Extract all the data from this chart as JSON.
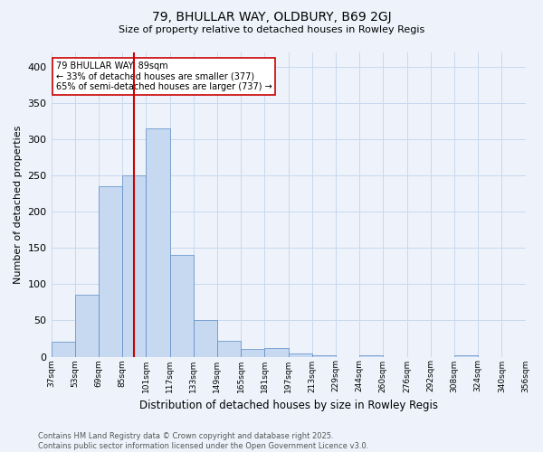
{
  "title_line1": "79, BHULLAR WAY, OLDBURY, B69 2GJ",
  "title_line2": "Size of property relative to detached houses in Rowley Regis",
  "xlabel": "Distribution of detached houses by size in Rowley Regis",
  "ylabel": "Number of detached properties",
  "bar_values": [
    20,
    85,
    235,
    250,
    315,
    140,
    50,
    22,
    10,
    12,
    5,
    2,
    0,
    2,
    0,
    0,
    0,
    2,
    0,
    0
  ],
  "bin_edges": [
    37,
    53,
    69,
    85,
    101,
    117,
    133,
    149,
    165,
    181,
    197,
    213,
    229,
    244,
    260,
    276,
    292,
    308,
    324,
    340,
    356
  ],
  "bin_labels": [
    "37sqm",
    "53sqm",
    "69sqm",
    "85sqm",
    "101sqm",
    "117sqm",
    "133sqm",
    "149sqm",
    "165sqm",
    "181sqm",
    "197sqm",
    "213sqm",
    "229sqm",
    "244sqm",
    "260sqm",
    "276sqm",
    "292sqm",
    "308sqm",
    "324sqm",
    "340sqm",
    "356sqm"
  ],
  "bar_color": "#c6d9f0",
  "bar_edge_color": "#5a8ac6",
  "grid_color": "#c8d8ee",
  "background_color": "#eef3fb",
  "red_line_color": "#cc0000",
  "red_line_bin_index": 3.5,
  "annotation_text": "79 BHULLAR WAY: 89sqm\n← 33% of detached houses are smaller (377)\n65% of semi-detached houses are larger (737) →",
  "annotation_box_facecolor": "#ffffff",
  "annotation_box_edgecolor": "#cc0000",
  "ylim": [
    0,
    420
  ],
  "yticks": [
    0,
    50,
    100,
    150,
    200,
    250,
    300,
    350,
    400
  ],
  "footnote": "Contains HM Land Registry data © Crown copyright and database right 2025.\nContains public sector information licensed under the Open Government Licence v3.0.",
  "figsize": [
    6.0,
    5.0
  ],
  "dpi": 100
}
